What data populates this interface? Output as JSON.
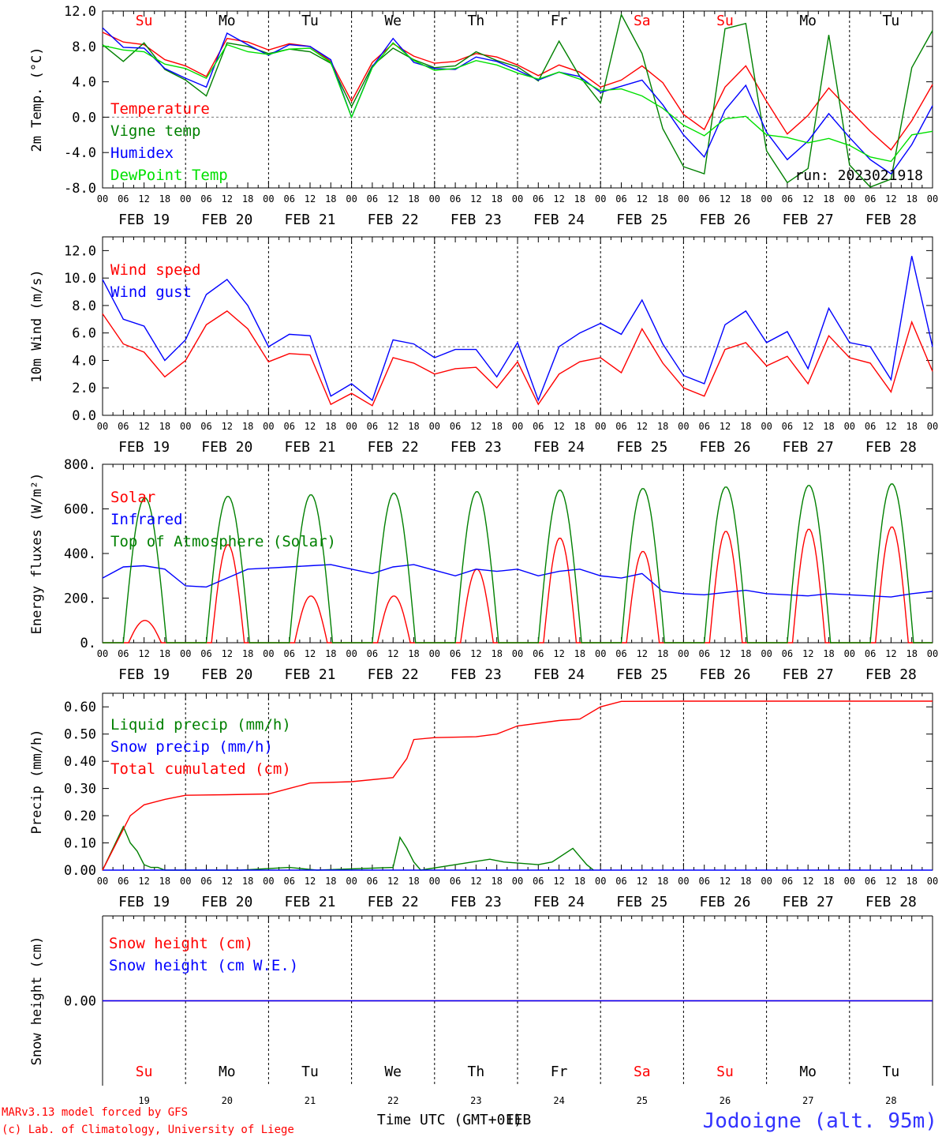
{
  "meteogram": {
    "location": "Jodoigne (alt. 95m)",
    "run_label": "run: 2023021918",
    "credit_line1": "MARv3.13 model forced by GFS",
    "credit_line2": "(c) Lab. of Climatology, University of Liege",
    "time_axis_label": "Time UTC (GMT+01)",
    "overlap_text": "FEB",
    "day_names": [
      "Su",
      "Mo",
      "Tu",
      "We",
      "Th",
      "Fr",
      "Sa",
      "Su",
      "Mo",
      "Tu"
    ],
    "weekend_flags": [
      true,
      false,
      false,
      false,
      false,
      false,
      true,
      true,
      false,
      false
    ],
    "day_numbers": [
      "19",
      "20",
      "21",
      "22",
      "23",
      "24",
      "25",
      "26",
      "27",
      "28"
    ],
    "date_labels": [
      "FEB 19",
      "FEB 20",
      "FEB 21",
      "FEB 22",
      "FEB 23",
      "FEB 24",
      "FEB 25",
      "FEB 26",
      "FEB 27",
      "FEB 28"
    ],
    "hour_labels": [
      "00",
      "06",
      "12",
      "18"
    ],
    "colors": {
      "red": "#ff0000",
      "green": "#008000",
      "blue": "#0000ff",
      "lightgreen": "#00e000",
      "purple": "#800080",
      "title": "#3333ff"
    }
  },
  "chart_data": [
    {
      "type": "line",
      "ylabel": "2m Temp. (°C)",
      "ylim": [
        -8,
        12
      ],
      "yticks": [
        "12.0",
        "8.0",
        "4.0",
        "0.0",
        "-4.0",
        "-8.0"
      ],
      "ytick_values": [
        12,
        8,
        4,
        0,
        -4,
        -8
      ],
      "reference_line": 0,
      "x_unit": "hours since Feb 19 00 UTC",
      "series": [
        {
          "name": "Temperature",
          "color": "red",
          "x": [
            0,
            6,
            12,
            18,
            24,
            30,
            36,
            42,
            48,
            54,
            60,
            66,
            72,
            78,
            84,
            90,
            96,
            102,
            108,
            114,
            120,
            126,
            132,
            138,
            144,
            150,
            156,
            162,
            168,
            174,
            180,
            186,
            192,
            198,
            204,
            210,
            216,
            222,
            228,
            234,
            240
          ],
          "y": [
            9.6,
            8.5,
            8.2,
            6.5,
            5.8,
            4.6,
            8.9,
            8.5,
            7.6,
            8.3,
            8.0,
            6.3,
            1.8,
            6.2,
            8.3,
            6.9,
            6.1,
            6.3,
            7.2,
            6.8,
            5.9,
            4.7,
            5.9,
            5.1,
            3.4,
            4.2,
            5.8,
            3.9,
            0.3,
            -1.4,
            3.4,
            5.8,
            1.8,
            -1.9,
            0.2,
            3.3,
            0.8,
            -1.6,
            -3.7,
            -0.4,
            3.7
          ]
        },
        {
          "name": "Vigne temp",
          "color": "green",
          "x": [
            0,
            6,
            12,
            18,
            24,
            30,
            36,
            42,
            48,
            54,
            60,
            66,
            72,
            78,
            84,
            90,
            96,
            102,
            108,
            114,
            120,
            126,
            132,
            138,
            144,
            150,
            156,
            162,
            168,
            174,
            180,
            186,
            192,
            198,
            204,
            210,
            216,
            222,
            228,
            234,
            240
          ],
          "y": [
            8.2,
            6.3,
            8.4,
            5.4,
            4.2,
            2.4,
            8.4,
            8.0,
            7.2,
            7.7,
            7.4,
            6.1,
            1.2,
            5.8,
            7.8,
            6.5,
            5.6,
            5.8,
            7.4,
            6.4,
            5.7,
            4.1,
            8.6,
            4.6,
            1.6,
            11.6,
            7.2,
            -1.3,
            -5.6,
            -6.4,
            10.0,
            10.6,
            -3.8,
            -7.4,
            -5.8,
            9.3,
            -5.4,
            -7.9,
            -7.0,
            5.6,
            9.8
          ]
        },
        {
          "name": "Humidex",
          "color": "blue",
          "x": [
            0,
            6,
            12,
            18,
            24,
            30,
            36,
            42,
            48,
            54,
            60,
            66,
            72,
            78,
            84,
            90,
            96,
            102,
            108,
            114,
            120,
            126,
            132,
            138,
            144,
            150,
            156,
            162,
            168,
            174,
            180,
            186,
            192,
            198,
            204,
            210,
            216,
            222,
            228,
            234,
            240
          ],
          "y": [
            10.1,
            7.9,
            7.8,
            5.5,
            4.4,
            3.4,
            9.5,
            8.2,
            7.0,
            8.2,
            8.0,
            6.5,
            0.0,
            5.7,
            8.9,
            6.2,
            5.5,
            5.4,
            6.8,
            6.3,
            5.3,
            4.2,
            5.1,
            4.6,
            2.8,
            3.5,
            4.2,
            1.4,
            -2.0,
            -4.5,
            0.8,
            3.6,
            -1.7,
            -4.8,
            -2.7,
            0.4,
            -2.3,
            -4.8,
            -6.4,
            -3.1,
            1.3
          ]
        },
        {
          "name": "DewPoint Temp",
          "color": "lightgreen",
          "x": [
            0,
            6,
            12,
            18,
            24,
            30,
            36,
            42,
            48,
            54,
            60,
            66,
            72,
            78,
            84,
            90,
            96,
            102,
            108,
            114,
            120,
            126,
            132,
            138,
            144,
            150,
            156,
            162,
            168,
            174,
            180,
            186,
            192,
            198,
            204,
            210,
            216,
            222,
            228,
            234,
            240
          ],
          "y": [
            8.1,
            7.6,
            7.4,
            6.0,
            5.5,
            4.4,
            8.2,
            7.4,
            7.1,
            7.7,
            7.8,
            6.2,
            0.0,
            5.6,
            8.4,
            6.4,
            5.3,
            5.5,
            6.4,
            5.9,
            5.0,
            4.3,
            5.1,
            4.3,
            3.0,
            3.2,
            2.4,
            1.0,
            -0.9,
            -2.1,
            -0.2,
            0.1,
            -2.0,
            -2.3,
            -2.9,
            -2.4,
            -3.2,
            -4.5,
            -5.0,
            -2.0,
            -1.6
          ]
        }
      ]
    },
    {
      "type": "line",
      "ylabel": "10m Wind (m/s)",
      "ylim": [
        0,
        13
      ],
      "yticks": [
        "12.0",
        "10.0",
        "8.0",
        "6.0",
        "4.0",
        "2.0",
        "0.0"
      ],
      "ytick_values": [
        12,
        10,
        8,
        6,
        4,
        2,
        0
      ],
      "reference_line": 5,
      "x_unit": "hours since Feb 19 00 UTC",
      "series": [
        {
          "name": "Wind speed",
          "color": "red",
          "x": [
            0,
            6,
            12,
            18,
            24,
            30,
            36,
            42,
            48,
            54,
            60,
            66,
            72,
            78,
            84,
            90,
            96,
            102,
            108,
            114,
            120,
            126,
            132,
            138,
            144,
            150,
            156,
            162,
            168,
            174,
            180,
            186,
            192,
            198,
            204,
            210,
            216,
            222,
            228,
            234,
            240
          ],
          "y": [
            7.4,
            5.2,
            4.6,
            2.8,
            4.0,
            6.6,
            7.6,
            6.3,
            3.9,
            4.5,
            4.4,
            0.8,
            1.6,
            0.7,
            4.2,
            3.8,
            3.0,
            3.4,
            3.5,
            2.0,
            3.9,
            0.8,
            3.0,
            3.9,
            4.2,
            3.1,
            6.3,
            3.8,
            2.0,
            1.4,
            4.8,
            5.3,
            3.6,
            4.3,
            2.3,
            5.8,
            4.2,
            3.8,
            1.7,
            6.8,
            3.2
          ]
        },
        {
          "name": "Wind gust",
          "color": "blue",
          "x": [
            0,
            6,
            12,
            18,
            24,
            30,
            36,
            42,
            48,
            54,
            60,
            66,
            72,
            78,
            84,
            90,
            96,
            102,
            108,
            114,
            120,
            126,
            132,
            138,
            144,
            150,
            156,
            162,
            168,
            174,
            180,
            186,
            192,
            198,
            204,
            210,
            216,
            222,
            228,
            234,
            240
          ],
          "y": [
            9.9,
            7.0,
            6.5,
            4.0,
            5.5,
            8.8,
            9.9,
            8.0,
            5.0,
            5.9,
            5.8,
            1.4,
            2.3,
            1.1,
            5.5,
            5.2,
            4.2,
            4.8,
            4.8,
            2.8,
            5.3,
            1.1,
            5.0,
            6.0,
            6.7,
            5.9,
            8.4,
            5.2,
            2.9,
            2.3,
            6.6,
            7.6,
            5.3,
            6.1,
            3.4,
            7.8,
            5.3,
            5.0,
            2.6,
            11.6,
            5.0
          ]
        }
      ]
    },
    {
      "type": "line",
      "ylabel": "Energy fluxes (W/m²)",
      "ylim": [
        0,
        800
      ],
      "yticks": [
        "800.",
        "600.",
        "400.",
        "200.",
        "0."
      ],
      "ytick_values": [
        800,
        600,
        400,
        200,
        0
      ],
      "x_unit": "hours since Feb 19 00 UTC",
      "series": [
        {
          "name": "Solar",
          "color": "red",
          "day_peaks": [
            100,
            440,
            210,
            210,
            330,
            470,
            410,
            500,
            510,
            520
          ]
        },
        {
          "name": "Infrared",
          "color": "blue",
          "x": [
            0,
            6,
            12,
            18,
            24,
            30,
            36,
            42,
            48,
            54,
            60,
            66,
            72,
            78,
            84,
            90,
            96,
            102,
            108,
            114,
            120,
            126,
            132,
            138,
            144,
            150,
            156,
            162,
            168,
            174,
            180,
            186,
            192,
            198,
            204,
            210,
            216,
            222,
            228,
            234,
            240
          ],
          "y": [
            290,
            340,
            345,
            330,
            255,
            250,
            290,
            330,
            335,
            340,
            345,
            350,
            330,
            310,
            340,
            350,
            325,
            300,
            330,
            320,
            330,
            300,
            320,
            330,
            300,
            290,
            310,
            230,
            220,
            215,
            225,
            235,
            220,
            215,
            210,
            220,
            215,
            210,
            205,
            220,
            230
          ]
        },
        {
          "name": "Top of Atmosphere (Solar)",
          "color": "green",
          "day_peaks": [
            650,
            657,
            664,
            671,
            678,
            685,
            692,
            699,
            706,
            713
          ]
        }
      ]
    },
    {
      "type": "line",
      "ylabel": "Precip (mm/h)",
      "ylim": [
        0,
        0.65
      ],
      "yticks": [
        "0.60",
        "0.50",
        "0.40",
        "0.30",
        "0.20",
        "0.10",
        "0.00"
      ],
      "ytick_values": [
        0.6,
        0.5,
        0.4,
        0.3,
        0.2,
        0.1,
        0
      ],
      "x_unit": "hours since Feb 19 00 UTC",
      "series": [
        {
          "name": "Liquid precip (mm/h)",
          "color": "green",
          "x": [
            0,
            3,
            6,
            8,
            10,
            12,
            14,
            16,
            18,
            40,
            54,
            62,
            84,
            86,
            88,
            90,
            92,
            112,
            116,
            126,
            130,
            136,
            138,
            140,
            142
          ],
          "y": [
            0.0,
            0.08,
            0.16,
            0.1,
            0.07,
            0.02,
            0.01,
            0.01,
            0.0,
            0.0,
            0.01,
            0.0,
            0.01,
            0.12,
            0.08,
            0.03,
            0.0,
            0.04,
            0.03,
            0.02,
            0.03,
            0.08,
            0.05,
            0.02,
            0.0
          ]
        },
        {
          "name": "Snow precip (mm/h)",
          "color": "blue",
          "x": [
            0,
            240
          ],
          "y": [
            0,
            0
          ]
        },
        {
          "name": "Total cumulated (cm)",
          "color": "red",
          "x": [
            0,
            4,
            8,
            12,
            18,
            24,
            36,
            48,
            54,
            60,
            72,
            84,
            88,
            90,
            96,
            108,
            114,
            120,
            132,
            138,
            144,
            150,
            168,
            192,
            216,
            240
          ],
          "y": [
            0,
            0.1,
            0.2,
            0.24,
            0.26,
            0.275,
            0.277,
            0.28,
            0.3,
            0.32,
            0.325,
            0.34,
            0.41,
            0.48,
            0.487,
            0.49,
            0.5,
            0.53,
            0.55,
            0.555,
            0.6,
            0.62,
            0.621,
            0.621,
            0.621,
            0.621
          ]
        }
      ]
    },
    {
      "type": "line",
      "ylabel": "Snow height (cm)",
      "yticks": [
        "0.00"
      ],
      "ytick_values": [
        0
      ],
      "ylim": [
        -1,
        1
      ],
      "x_unit": "hours since Feb 19 00 UTC",
      "series": [
        {
          "name": "Snow height (cm)",
          "color": "red",
          "x": [
            0,
            240
          ],
          "y": [
            0,
            0
          ]
        },
        {
          "name": "Snow height (cm W.E.)",
          "color": "blue",
          "x": [
            0,
            240
          ],
          "y": [
            0,
            0
          ]
        }
      ]
    }
  ]
}
